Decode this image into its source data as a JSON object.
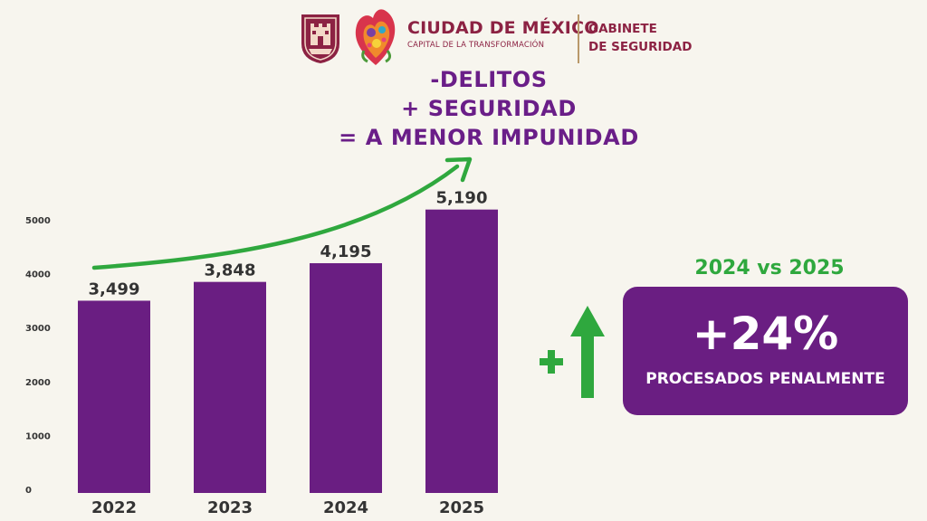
{
  "header": {
    "title": "CIUDAD DE MÉXICO",
    "subtitle": "CAPITAL DE LA TRANSFORMACIÓN",
    "office_line1": "GABINETE",
    "office_line2": "DE SEGURIDAD",
    "brand_color": "#8c2243"
  },
  "slogan": {
    "line1": "-DELITOS",
    "line2": "+ SEGURIDAD",
    "line3": "= A MENOR IMPUNIDAD",
    "color": "#6a1e88"
  },
  "chart_data": {
    "type": "bar",
    "categories": [
      "2022",
      "2023",
      "2024",
      "2025"
    ],
    "values": [
      3499,
      3848,
      4195,
      5190
    ],
    "data_labels": [
      "3,499",
      "3,848",
      "4,195",
      "5,190"
    ],
    "yticks": [
      0,
      1000,
      2000,
      3000,
      4000,
      5000
    ],
    "ylim": [
      0,
      5000
    ],
    "grid": false,
    "trend_arrow": "increasing",
    "bar_color": "#6a1e82",
    "arrow_color": "#2fa83e"
  },
  "comparison": {
    "label": "2024 vs 2025",
    "sign": "+",
    "value": "+24%",
    "description": "PROCESADOS PENALMENTE",
    "icon": "arrow-up-icon",
    "accent_color": "#2fa83e",
    "card_color": "#6a1e82"
  }
}
